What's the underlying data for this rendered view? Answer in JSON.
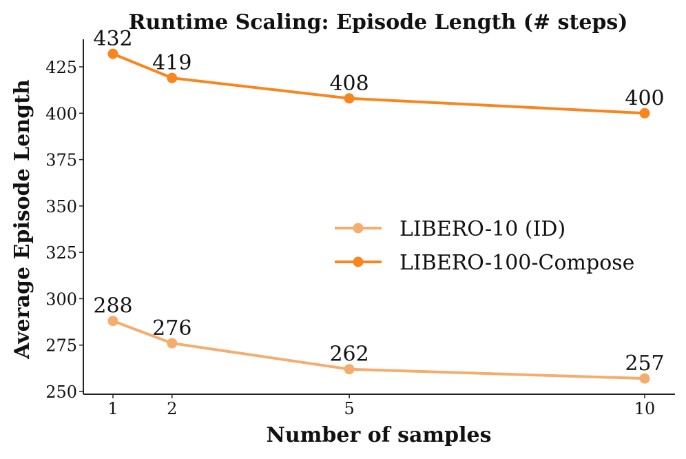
{
  "chart_data": {
    "type": "line",
    "title": "Runtime Scaling: Episode Length (# steps)",
    "xlabel": "Number of samples",
    "ylabel": "Average Episode Length",
    "x": [
      1,
      2,
      5,
      10
    ],
    "x_ticks": [
      "1",
      "2",
      "5",
      "10"
    ],
    "xlim": [
      0.5,
      10.5
    ],
    "ylim": [
      250,
      442
    ],
    "y_ticks": [
      "250",
      "275",
      "300",
      "325",
      "350",
      "375",
      "400",
      "425"
    ],
    "grid": false,
    "legend_position": "center-right",
    "series": [
      {
        "name": "LIBERO-10 (ID)",
        "values": [
          288,
          276,
          262,
          257
        ],
        "labels": [
          "288",
          "276",
          "262",
          "257"
        ],
        "color": "#F5AD6D"
      },
      {
        "name": "LIBERO-100-Compose",
        "values": [
          432,
          419,
          408,
          400
        ],
        "labels": [
          "432",
          "419",
          "408",
          "400"
        ],
        "color": "#F7861F"
      }
    ]
  }
}
